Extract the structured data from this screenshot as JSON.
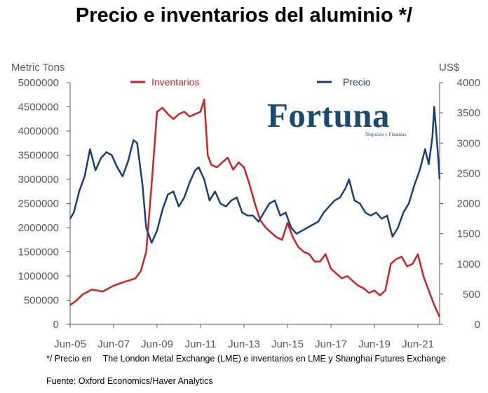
{
  "title": "Precio e inventarios del aluminio */",
  "brand": {
    "name": "Fortuna",
    "tagline": "Negocios y Finanzas"
  },
  "notes": {
    "prefix": "*/ Precio en",
    "text": "The London Metal Exchange (LME) e inventarios en LME y Shanghai Futures Exchange",
    "source": "Fuente: Oxford Economics/Haver Analytics"
  },
  "chart_data": {
    "type": "line",
    "x_ticks": [
      "Jun-05",
      "Jun-07",
      "Jun-09",
      "Jun-11",
      "Jun-13",
      "Jun-15",
      "Jun-17",
      "Jun-19",
      "Jun-21"
    ],
    "y_left": {
      "unit_label": "Metric Tons",
      "min": 0,
      "max": 5000000,
      "ticks": [
        "0",
        "500000",
        "1000000",
        "1500000",
        "2000000",
        "2500000",
        "3000000",
        "3500000",
        "4000000",
        "4500000",
        "5000000"
      ]
    },
    "y_right": {
      "unit_label": "US$",
      "min": 0,
      "max": 4000,
      "ticks": [
        "0",
        "500",
        "1000",
        "1500",
        "2000",
        "2500",
        "3000",
        "3500",
        "4000"
      ]
    },
    "legend": [
      "Inventarios",
      "Precio"
    ],
    "series": [
      {
        "name": "Inventarios",
        "axis": "left",
        "color": "#c8242b",
        "x": [
          "2005-06",
          "2005-09",
          "2006-01",
          "2006-06",
          "2006-12",
          "2007-06",
          "2007-12",
          "2008-06",
          "2008-09",
          "2008-12",
          "2009-03",
          "2009-06",
          "2009-09",
          "2009-12",
          "2010-03",
          "2010-06",
          "2010-09",
          "2010-12",
          "2011-03",
          "2011-06",
          "2011-08",
          "2011-10",
          "2011-12",
          "2012-03",
          "2012-06",
          "2012-09",
          "2012-12",
          "2013-03",
          "2013-06",
          "2013-09",
          "2013-12",
          "2014-03",
          "2014-06",
          "2014-09",
          "2014-12",
          "2015-03",
          "2015-06",
          "2015-09",
          "2015-12",
          "2016-03",
          "2016-06",
          "2016-09",
          "2016-12",
          "2017-03",
          "2017-06",
          "2017-09",
          "2017-12",
          "2018-03",
          "2018-06",
          "2018-09",
          "2018-12",
          "2019-03",
          "2019-06",
          "2019-09",
          "2019-12",
          "2020-03",
          "2020-06",
          "2020-09",
          "2020-12",
          "2021-03",
          "2021-06",
          "2021-09",
          "2021-12",
          "2022-03",
          "2022-06"
        ],
        "values": [
          400000,
          480000,
          620000,
          720000,
          680000,
          800000,
          880000,
          950000,
          1100000,
          1500000,
          2900000,
          4400000,
          4480000,
          4350000,
          4250000,
          4350000,
          4400000,
          4300000,
          4350000,
          4400000,
          4650000,
          3500000,
          3300000,
          3250000,
          3350000,
          3450000,
          3200000,
          3350000,
          3250000,
          2900000,
          2500000,
          2150000,
          2000000,
          1900000,
          1800000,
          1750000,
          2100000,
          1800000,
          1600000,
          1500000,
          1450000,
          1300000,
          1300000,
          1450000,
          1150000,
          1050000,
          950000,
          1000000,
          900000,
          800000,
          750000,
          650000,
          700000,
          600000,
          700000,
          1250000,
          1350000,
          1400000,
          1200000,
          1250000,
          1450000,
          1000000,
          700000,
          400000,
          150000
        ]
      },
      {
        "name": "Precio",
        "axis": "right",
        "color": "#1f3f73",
        "x": [
          "2005-06",
          "2005-08",
          "2005-11",
          "2006-02",
          "2006-05",
          "2006-08",
          "2006-11",
          "2007-02",
          "2007-05",
          "2007-08",
          "2007-11",
          "2008-02",
          "2008-05",
          "2008-07",
          "2008-10",
          "2008-12",
          "2009-03",
          "2009-06",
          "2009-09",
          "2009-12",
          "2010-03",
          "2010-06",
          "2010-09",
          "2010-12",
          "2011-03",
          "2011-05",
          "2011-08",
          "2011-11",
          "2012-02",
          "2012-05",
          "2012-08",
          "2012-11",
          "2013-02",
          "2013-05",
          "2013-08",
          "2013-11",
          "2014-02",
          "2014-05",
          "2014-08",
          "2014-11",
          "2015-02",
          "2015-05",
          "2015-08",
          "2015-11",
          "2016-02",
          "2016-05",
          "2016-08",
          "2016-11",
          "2017-02",
          "2017-05",
          "2017-08",
          "2017-11",
          "2018-02",
          "2018-04",
          "2018-07",
          "2018-10",
          "2019-01",
          "2019-04",
          "2019-07",
          "2019-10",
          "2020-01",
          "2020-04",
          "2020-07",
          "2020-10",
          "2021-01",
          "2021-04",
          "2021-07",
          "2021-10",
          "2021-12",
          "2022-02",
          "2022-03",
          "2022-05",
          "2022-06"
        ],
        "values": [
          1750,
          1850,
          2200,
          2450,
          2900,
          2550,
          2750,
          2850,
          2800,
          2600,
          2450,
          2700,
          3050,
          3000,
          2300,
          1600,
          1350,
          1550,
          1900,
          2150,
          2200,
          1950,
          2100,
          2350,
          2550,
          2600,
          2400,
          2050,
          2200,
          2000,
          1950,
          2050,
          2100,
          1850,
          1800,
          1800,
          1700,
          1850,
          2000,
          2050,
          1800,
          1850,
          1600,
          1500,
          1550,
          1600,
          1650,
          1700,
          1850,
          1950,
          2050,
          2100,
          2250,
          2400,
          2050,
          2000,
          1850,
          1800,
          1850,
          1750,
          1800,
          1450,
          1600,
          1850,
          2000,
          2300,
          2550,
          2900,
          2650,
          3100,
          3600,
          2850,
          2400
        ]
      }
    ]
  }
}
